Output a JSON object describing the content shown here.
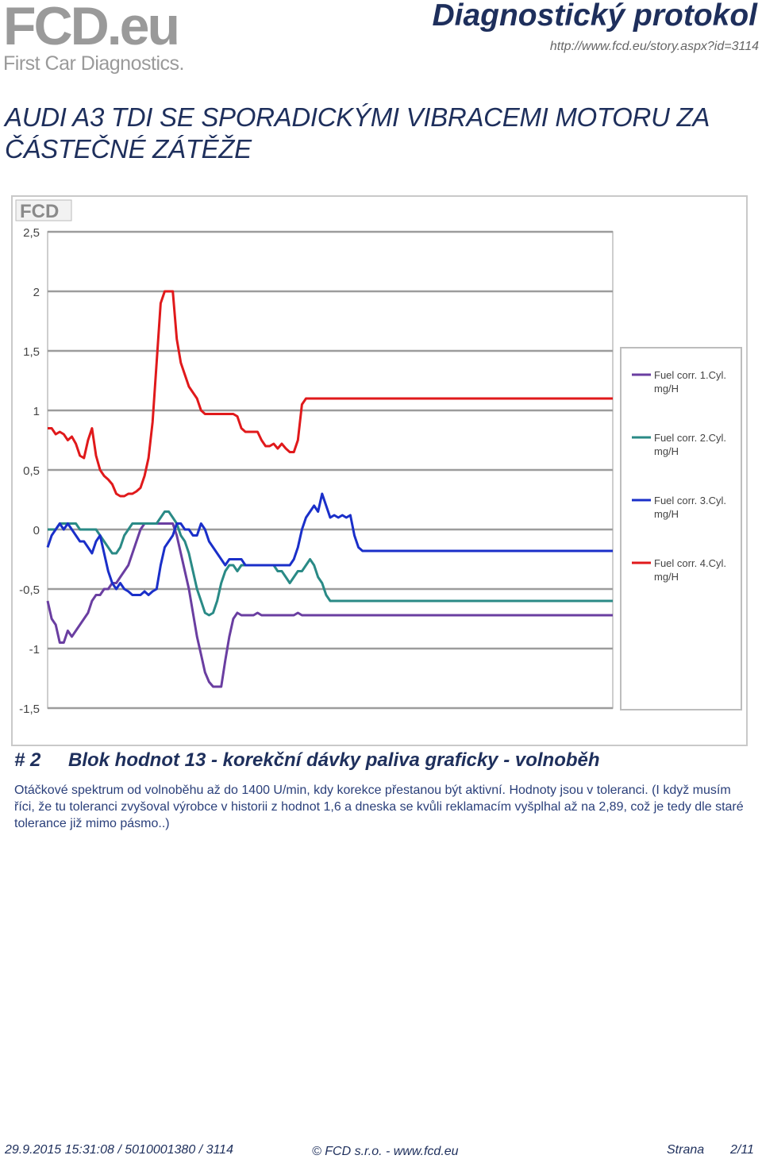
{
  "header": {
    "logo_text_main": "FCD",
    "logo_text_dot": ".eu",
    "logo_subtitle": "First Car Diagnostics.",
    "title": "Diagnostický protokol",
    "url": "http://www.fcd.eu/story.aspx?id=3114"
  },
  "story": {
    "title": "AUDI A3 TDI SE SPORADICKÝMI VIBRACEMI MOTORU ZA ČÁSTEČNÉ ZÁTĚŽE"
  },
  "chart_logo": "FCD",
  "chart_data": {
    "type": "line",
    "ylim": [
      -1.5,
      2.5
    ],
    "yticks": [
      "2,5",
      "2",
      "1,5",
      "1",
      "0,5",
      "0",
      "-0,5",
      "-1",
      "-1,5"
    ],
    "ytick_values": [
      2.5,
      2,
      1.5,
      1,
      0.5,
      0,
      -0.5,
      -1,
      -1.5
    ],
    "grid": true,
    "legend_position": "right",
    "x": [
      0,
      5,
      10,
      15,
      20,
      25,
      30,
      35,
      40,
      45,
      50,
      55,
      60,
      65,
      70,
      75,
      80,
      85,
      90,
      95,
      100,
      105,
      110,
      115,
      120,
      125,
      130,
      135,
      140,
      145,
      150,
      155,
      160,
      165,
      170,
      175,
      180,
      185,
      190,
      195,
      200,
      205,
      210,
      215,
      220,
      225,
      230,
      235,
      240,
      245,
      250,
      255,
      260,
      265,
      270,
      275,
      280,
      285,
      290,
      295,
      300,
      305,
      310,
      315,
      320,
      325,
      330,
      335,
      340,
      345,
      350,
      355,
      360,
      365,
      370,
      375,
      380,
      385,
      390,
      395,
      400,
      405,
      410,
      415,
      420,
      425,
      430,
      435,
      440,
      445,
      450,
      455,
      460,
      465,
      470,
      475,
      480,
      485,
      490,
      495,
      500,
      505,
      510,
      515,
      520,
      525,
      530,
      535,
      540,
      545,
      550,
      555,
      560,
      565,
      570,
      575,
      580,
      585,
      590,
      595,
      600,
      605,
      610,
      615,
      620,
      625,
      630,
      635,
      640,
      645,
      650,
      655,
      660,
      665,
      670,
      675,
      680,
      685,
      690,
      695,
      700
    ],
    "series": [
      {
        "name": "Fuel corr. 1.Cyl. mg/H",
        "color": "#6a3ea1",
        "values": [
          -0.6,
          -0.75,
          -0.8,
          -0.95,
          -0.95,
          -0.85,
          -0.9,
          -0.85,
          -0.8,
          -0.75,
          -0.7,
          -0.6,
          -0.55,
          -0.55,
          -0.5,
          -0.5,
          -0.45,
          -0.45,
          -0.4,
          -0.35,
          -0.3,
          -0.2,
          -0.1,
          0.0,
          0.05,
          0.05,
          0.05,
          0.05,
          0.05,
          0.05,
          0.05,
          0.05,
          -0.05,
          -0.2,
          -0.35,
          -0.5,
          -0.7,
          -0.9,
          -1.05,
          -1.2,
          -1.28,
          -1.32,
          -1.32,
          -1.32,
          -1.1,
          -0.9,
          -0.75,
          -0.7,
          -0.72,
          -0.72,
          -0.72,
          -0.72,
          -0.7,
          -0.72,
          -0.72,
          -0.72,
          -0.72,
          -0.72,
          -0.72,
          -0.72,
          -0.72,
          -0.72,
          -0.7,
          -0.72,
          -0.72,
          -0.72,
          -0.72,
          -0.72,
          -0.72,
          -0.72,
          -0.72,
          -0.72,
          -0.72,
          -0.72,
          -0.72,
          -0.72,
          -0.72,
          -0.72,
          -0.72,
          -0.72,
          -0.72,
          -0.72,
          -0.72,
          -0.72,
          -0.72,
          -0.72,
          -0.72,
          -0.72,
          -0.72,
          -0.72,
          -0.72,
          -0.72,
          -0.72,
          -0.72,
          -0.72,
          -0.72,
          -0.72,
          -0.72,
          -0.72,
          -0.72,
          -0.72,
          -0.72,
          -0.72,
          -0.72,
          -0.72,
          -0.72,
          -0.72,
          -0.72,
          -0.72,
          -0.72,
          -0.72,
          -0.72,
          -0.72,
          -0.72,
          -0.72,
          -0.72,
          -0.72,
          -0.72,
          -0.72,
          -0.72,
          -0.72,
          -0.72,
          -0.72,
          -0.72,
          -0.72,
          -0.72,
          -0.72,
          -0.72,
          -0.72,
          -0.72,
          -0.72,
          -0.72,
          -0.72,
          -0.72,
          -0.72,
          -0.72,
          -0.72,
          -0.72,
          -0.72,
          -0.72,
          -0.72
        ]
      },
      {
        "name": "Fuel corr. 2.Cyl. mg/H",
        "color": "#2a8a86",
        "values": [
          0.0,
          0.0,
          0.0,
          0.05,
          0.05,
          0.05,
          0.05,
          0.05,
          0.0,
          0.0,
          0.0,
          0.0,
          0.0,
          -0.05,
          -0.1,
          -0.15,
          -0.2,
          -0.2,
          -0.15,
          -0.05,
          0.0,
          0.05,
          0.05,
          0.05,
          0.05,
          0.05,
          0.05,
          0.05,
          0.1,
          0.15,
          0.15,
          0.1,
          0.05,
          -0.05,
          -0.1,
          -0.2,
          -0.35,
          -0.5,
          -0.6,
          -0.7,
          -0.72,
          -0.7,
          -0.6,
          -0.45,
          -0.35,
          -0.3,
          -0.3,
          -0.35,
          -0.3,
          -0.3,
          -0.3,
          -0.3,
          -0.3,
          -0.3,
          -0.3,
          -0.3,
          -0.3,
          -0.35,
          -0.35,
          -0.4,
          -0.45,
          -0.4,
          -0.35,
          -0.35,
          -0.3,
          -0.25,
          -0.3,
          -0.4,
          -0.45,
          -0.55,
          -0.6,
          -0.6,
          -0.6,
          -0.6,
          -0.6,
          -0.6,
          -0.6,
          -0.6,
          -0.6,
          -0.6,
          -0.6,
          -0.6,
          -0.6,
          -0.6,
          -0.6,
          -0.6,
          -0.6,
          -0.6,
          -0.6,
          -0.6,
          -0.6,
          -0.6,
          -0.6,
          -0.6,
          -0.6,
          -0.6,
          -0.6,
          -0.6,
          -0.6,
          -0.6,
          -0.6,
          -0.6,
          -0.6,
          -0.6,
          -0.6,
          -0.6,
          -0.6,
          -0.6,
          -0.6,
          -0.6,
          -0.6,
          -0.6,
          -0.6,
          -0.6,
          -0.6,
          -0.6,
          -0.6,
          -0.6,
          -0.6,
          -0.6,
          -0.6,
          -0.6,
          -0.6,
          -0.6,
          -0.6,
          -0.6,
          -0.6,
          -0.6,
          -0.6,
          -0.6,
          -0.6,
          -0.6,
          -0.6,
          -0.6,
          -0.6,
          -0.6,
          -0.6,
          -0.6,
          -0.6,
          -0.6,
          -0.6
        ]
      },
      {
        "name": "Fuel corr. 3.Cyl. mg/H",
        "color": "#1a2fc9",
        "values": [
          -0.15,
          -0.05,
          0.0,
          0.05,
          0.0,
          0.05,
          0.0,
          -0.05,
          -0.1,
          -0.1,
          -0.15,
          -0.2,
          -0.1,
          -0.05,
          -0.2,
          -0.35,
          -0.45,
          -0.5,
          -0.45,
          -0.5,
          -0.52,
          -0.55,
          -0.55,
          -0.55,
          -0.52,
          -0.55,
          -0.52,
          -0.5,
          -0.3,
          -0.15,
          -0.1,
          -0.05,
          0.05,
          0.05,
          0.0,
          0.0,
          -0.05,
          -0.05,
          0.05,
          0.0,
          -0.1,
          -0.15,
          -0.2,
          -0.25,
          -0.3,
          -0.25,
          -0.25,
          -0.25,
          -0.25,
          -0.3,
          -0.3,
          -0.3,
          -0.3,
          -0.3,
          -0.3,
          -0.3,
          -0.3,
          -0.3,
          -0.3,
          -0.3,
          -0.3,
          -0.25,
          -0.15,
          0.0,
          0.1,
          0.15,
          0.2,
          0.15,
          0.3,
          0.2,
          0.1,
          0.12,
          0.1,
          0.12,
          0.1,
          0.12,
          -0.05,
          -0.15,
          -0.18,
          -0.18,
          -0.18,
          -0.18,
          -0.18,
          -0.18,
          -0.18,
          -0.18,
          -0.18,
          -0.18,
          -0.18,
          -0.18,
          -0.18,
          -0.18,
          -0.18,
          -0.18,
          -0.18,
          -0.18,
          -0.18,
          -0.18,
          -0.18,
          -0.18,
          -0.18,
          -0.18,
          -0.18,
          -0.18,
          -0.18,
          -0.18,
          -0.18,
          -0.18,
          -0.18,
          -0.18,
          -0.18,
          -0.18,
          -0.18,
          -0.18,
          -0.18,
          -0.18,
          -0.18,
          -0.18,
          -0.18,
          -0.18,
          -0.18,
          -0.18,
          -0.18,
          -0.18,
          -0.18,
          -0.18,
          -0.18,
          -0.18,
          -0.18,
          -0.18,
          -0.18,
          -0.18,
          -0.18,
          -0.18,
          -0.18,
          -0.18,
          -0.18,
          -0.18,
          -0.18,
          -0.18,
          -0.18
        ]
      },
      {
        "name": "Fuel corr. 4.Cyl. mg/H",
        "color": "#e0191b",
        "values": [
          0.85,
          0.85,
          0.8,
          0.82,
          0.8,
          0.75,
          0.78,
          0.72,
          0.62,
          0.6,
          0.75,
          0.85,
          0.62,
          0.5,
          0.45,
          0.42,
          0.38,
          0.3,
          0.28,
          0.28,
          0.3,
          0.3,
          0.32,
          0.35,
          0.45,
          0.6,
          0.9,
          1.4,
          1.9,
          2.0,
          2.0,
          2.0,
          1.6,
          1.4,
          1.3,
          1.2,
          1.15,
          1.1,
          1.0,
          0.97,
          0.97,
          0.97,
          0.97,
          0.97,
          0.97,
          0.97,
          0.97,
          0.95,
          0.85,
          0.82,
          0.82,
          0.82,
          0.82,
          0.75,
          0.7,
          0.7,
          0.72,
          0.68,
          0.72,
          0.68,
          0.65,
          0.65,
          0.75,
          1.05,
          1.1,
          1.1,
          1.1,
          1.1,
          1.1,
          1.1,
          1.1,
          1.1,
          1.1,
          1.1,
          1.1,
          1.1,
          1.1,
          1.1,
          1.1,
          1.1,
          1.1,
          1.1,
          1.1,
          1.1,
          1.1,
          1.1,
          1.1,
          1.1,
          1.1,
          1.1,
          1.1,
          1.1,
          1.1,
          1.1,
          1.1,
          1.1,
          1.1,
          1.1,
          1.1,
          1.1,
          1.1,
          1.1,
          1.1,
          1.1,
          1.1,
          1.1,
          1.1,
          1.1,
          1.1,
          1.1,
          1.1,
          1.1,
          1.1,
          1.1,
          1.1,
          1.1,
          1.1,
          1.1,
          1.1,
          1.1,
          1.1,
          1.1,
          1.1,
          1.1,
          1.1,
          1.1,
          1.1,
          1.1,
          1.1,
          1.1,
          1.1,
          1.1,
          1.1,
          1.1,
          1.1,
          1.1,
          1.1,
          1.1,
          1.1,
          1.1,
          1.1
        ]
      }
    ]
  },
  "block": {
    "number": "# 2",
    "title": "Blok hodnot 13 - korekční dávky paliva graficky - volnoběh",
    "description": "Otáčkové spektrum od volnoběhu až do 1400 U/min, kdy korekce přestanou být aktivní. Hodnoty jsou v toleranci. (I když musím říci, že tu toleranci zvyšoval výrobce v historii z hodnot 1,6 a dneska se kvůli reklamacím vyšplhal až na 2,89, což je tedy dle staré tolerance již mimo pásmo..)"
  },
  "footer": {
    "left": "29.9.2015 15:31:08 / 5010001380 / 3114",
    "center": "© FCD s.r.o. - www.fcd.eu",
    "strana_label": "Strana",
    "page": "2/11"
  }
}
